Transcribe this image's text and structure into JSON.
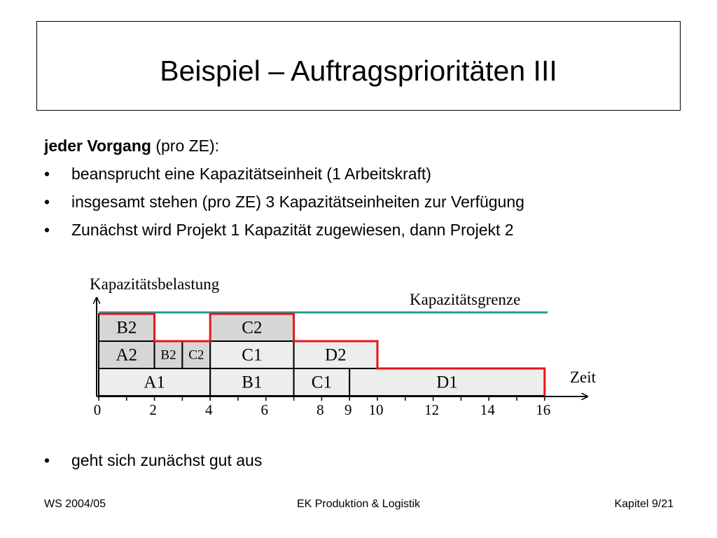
{
  "title": "Beispiel – Auftragsprioritäten III",
  "intro": {
    "bold": "jeder Vorgang",
    "rest": " (pro ZE):"
  },
  "bullet_symbol": "•",
  "bullets": [
    "beansprucht eine Kapazitätseinheit (1 Arbeitskraft)",
    "insgesamt stehen (pro ZE) 3 Kapazitätseinheiten zur Verfügung",
    "Zunächst wird Projekt 1 Kapazität zugewiesen, dann Projekt 2"
  ],
  "bullet_after": "geht sich zunächst gut aus",
  "diagram": {
    "y_label": "Kapazitätsbelastung",
    "x_label": "Zeit",
    "capacity_label": "Kapazitätsgrenze",
    "capacity_level": 3,
    "x_range": [
      0,
      16
    ],
    "ticks": [
      0,
      2,
      4,
      6,
      8,
      9,
      10,
      12,
      14,
      16
    ],
    "blocks": [
      {
        "label": "A1",
        "start": 0,
        "end": 4,
        "level": 0,
        "shade": "light"
      },
      {
        "label": "B1",
        "start": 4,
        "end": 7,
        "level": 0,
        "shade": "light"
      },
      {
        "label": "C1",
        "start": 7,
        "end": 9,
        "level": 0,
        "shade": "light"
      },
      {
        "label": "D1",
        "start": 9,
        "end": 16,
        "level": 0,
        "shade": "light"
      },
      {
        "label": "A2",
        "start": 0,
        "end": 2,
        "level": 1,
        "shade": "dark"
      },
      {
        "label": "B2",
        "start": 2,
        "end": 3,
        "level": 1,
        "shade": "dark",
        "small": true
      },
      {
        "label": "C2",
        "start": 3,
        "end": 4,
        "level": 1,
        "shade": "dark",
        "small": true
      },
      {
        "label": "C1",
        "start": 4,
        "end": 7,
        "level": 1,
        "shade": "light"
      },
      {
        "label": "D2",
        "start": 7,
        "end": 10,
        "level": 1,
        "shade": "light"
      },
      {
        "label": "B2",
        "start": 0,
        "end": 2,
        "level": 2,
        "shade": "dark"
      },
      {
        "label": "C2",
        "start": 4,
        "end": 7,
        "level": 2,
        "shade": "dark"
      }
    ],
    "load_profile": [
      [
        0,
        3
      ],
      [
        2,
        3
      ],
      [
        2,
        2
      ],
      [
        4,
        2
      ],
      [
        4,
        3
      ],
      [
        7,
        3
      ],
      [
        7,
        2
      ],
      [
        10,
        2
      ],
      [
        10,
        1
      ],
      [
        16,
        1
      ],
      [
        16,
        0
      ]
    ],
    "colors": {
      "load": "#e8141c",
      "capacity": "#2a9a8c",
      "light": "#ededed",
      "dark": "#d6d6d6"
    }
  },
  "footer": {
    "left": "WS 2004/05",
    "center": "EK Produktion & Logistik",
    "right": "Kapitel 9/21"
  }
}
